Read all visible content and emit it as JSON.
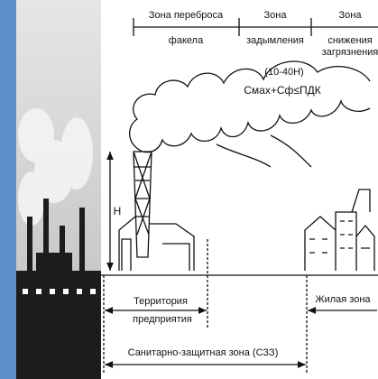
{
  "zones_top": [
    {
      "line1": "Зона переброса",
      "line2": "факела"
    },
    {
      "line1": "Зона",
      "line2": "задымления"
    },
    {
      "line1": "Зона",
      "line2": "снижения",
      "line3": "загрязнения"
    }
  ],
  "formula_range": "(10-40Н)",
  "formula": "Cмах+Cф≤ПДК",
  "height_label": "Н",
  "enterprise": {
    "line1": "Территория",
    "line2": "предприятия"
  },
  "residential": "Жилая зона",
  "sanitary_zone": "Санитарно-защитная зона (СЗЗ)"
}
